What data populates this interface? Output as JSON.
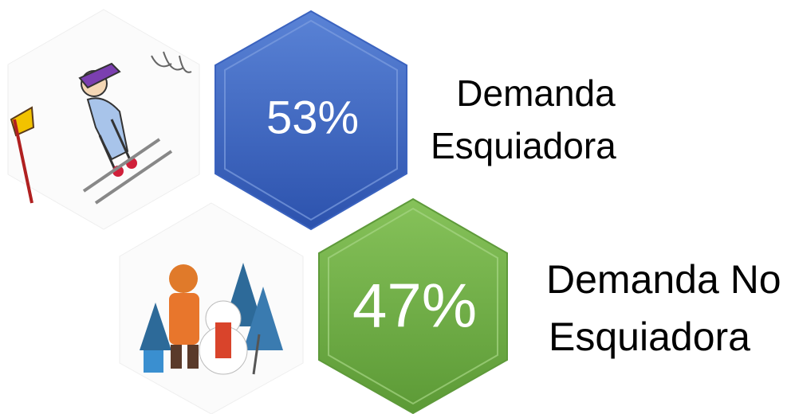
{
  "items": [
    {
      "value": "53%",
      "label_lines": [
        "Demanda",
        "Esquiadora"
      ]
    },
    {
      "value": "47%",
      "label_lines": [
        "Demanda No",
        "Esquiadora"
      ]
    }
  ]
}
